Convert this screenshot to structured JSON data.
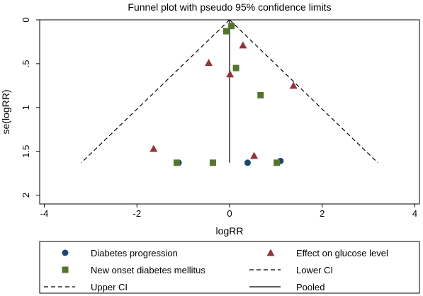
{
  "chart_data": {
    "type": "scatter",
    "title": "Funnel plot with pseudo 95% confidence limits",
    "xlabel": "logRR",
    "ylabel": "se(logRR)",
    "xlim": [
      -4.1,
      4.1
    ],
    "ylim": [
      0,
      2.1
    ],
    "y_reversed": true,
    "xticks": [
      -4,
      -2,
      0,
      2,
      4
    ],
    "xtick_labels": [
      "-4",
      "-2",
      "0",
      "2",
      "4"
    ],
    "yticks": [
      0,
      0.5,
      1,
      1.5,
      2
    ],
    "ytick_labels": [
      "0",
      ".5",
      "1",
      "1.5",
      "2"
    ],
    "grid": false,
    "legend_position": "bottom",
    "series": [
      {
        "name": "Diabetes progression",
        "marker": "circle",
        "color": "#1a476f",
        "points": [
          [
            -1.1,
            1.63
          ],
          [
            0.39,
            1.63
          ],
          [
            1.1,
            1.61
          ]
        ]
      },
      {
        "name": "Effect on glucose level",
        "marker": "triangle",
        "color": "#90353b",
        "points": [
          [
            0.29,
            0.29
          ],
          [
            -0.45,
            0.49
          ],
          [
            0.01,
            0.62
          ],
          [
            1.38,
            0.75
          ],
          [
            -1.64,
            1.47
          ],
          [
            0.53,
            1.55
          ]
        ]
      },
      {
        "name": "New onset diabetes mellitus",
        "marker": "square",
        "color": "#55752f",
        "points": [
          [
            0.04,
            0.07
          ],
          [
            -0.07,
            0.13
          ],
          [
            0.14,
            0.55
          ],
          [
            0.67,
            0.86
          ],
          [
            -1.14,
            1.63
          ],
          [
            -0.36,
            1.63
          ],
          [
            1.02,
            1.63
          ]
        ]
      }
    ],
    "lines": [
      {
        "name": "Lower CI",
        "style": "dashed",
        "points": [
          [
            0,
            0
          ],
          [
            -3.2,
            1.63
          ]
        ]
      },
      {
        "name": "Upper CI",
        "style": "dashed",
        "points": [
          [
            0,
            0
          ],
          [
            3.2,
            1.63
          ]
        ]
      },
      {
        "name": "Pooled",
        "style": "solid",
        "points": [
          [
            0,
            0
          ],
          [
            0,
            1.63
          ]
        ]
      }
    ],
    "legend": [
      {
        "label": "Diabetes progression",
        "symbol": "circle",
        "color": "#1a476f"
      },
      {
        "label": "Effect on glucose level",
        "symbol": "triangle",
        "color": "#90353b"
      },
      {
        "label": "New onset diabetes mellitus",
        "symbol": "square",
        "color": "#55752f"
      },
      {
        "label": "Lower CI",
        "symbol": "dashed"
      },
      {
        "label": "Upper CI",
        "symbol": "dashed"
      },
      {
        "label": "Pooled",
        "symbol": "solid"
      }
    ]
  }
}
